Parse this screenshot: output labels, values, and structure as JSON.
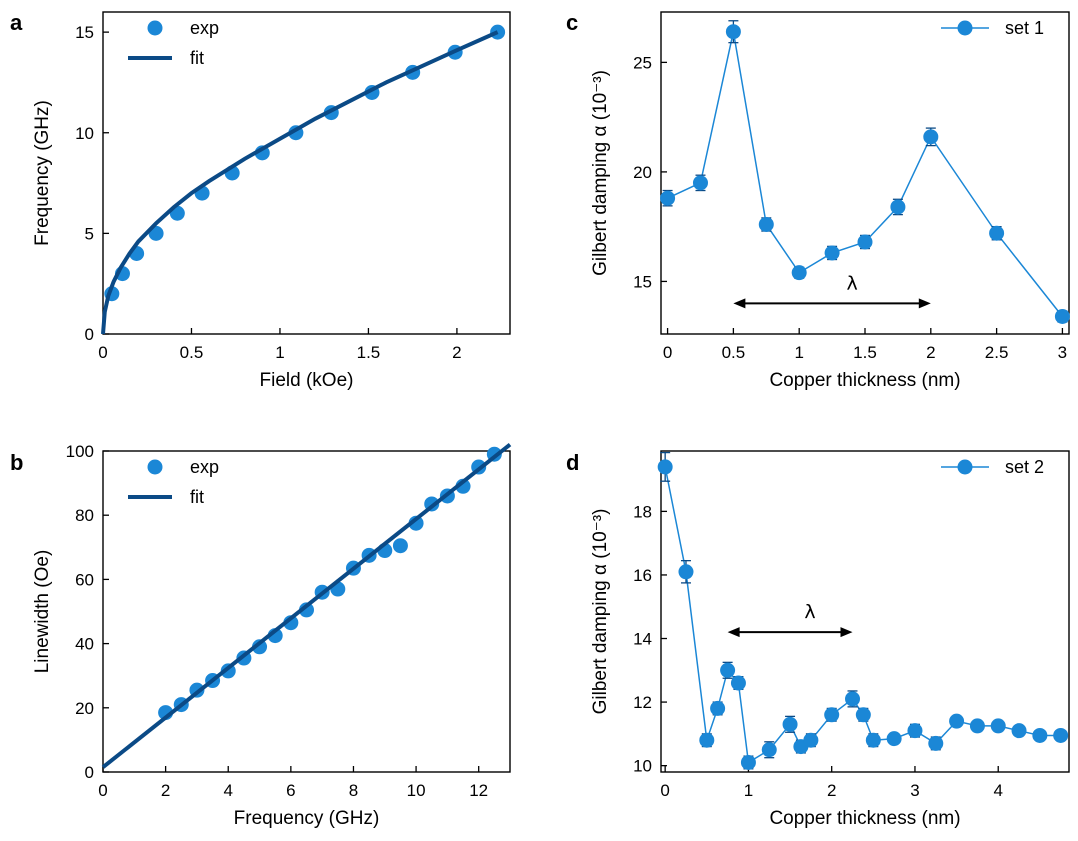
{
  "colors": {
    "marker": "#1b87d6",
    "fit": "#0b4a86",
    "axis": "#000000"
  },
  "chart_data": [
    {
      "id": "a",
      "type": "scatter",
      "panel_label": "a",
      "xlabel": "Field (kOe)",
      "ylabel": "Frequency (GHz)",
      "xlim": [
        0,
        2.3
      ],
      "ylim": [
        0,
        16
      ],
      "xticks": [
        0,
        0.5,
        1,
        1.5,
        2
      ],
      "xtick_labels": [
        "0",
        "0.5",
        "1",
        "1.5",
        "2"
      ],
      "yticks": [
        0,
        5,
        10,
        15
      ],
      "ytick_labels": [
        "0",
        "5",
        "10",
        "15"
      ],
      "legend": {
        "position": "top-left",
        "entries": [
          "exp",
          "fit"
        ]
      },
      "series": [
        {
          "name": "exp",
          "kind": "markers",
          "x": [
            0.05,
            0.11,
            0.19,
            0.3,
            0.42,
            0.56,
            0.73,
            0.9,
            1.09,
            1.29,
            1.52,
            1.75,
            1.99,
            2.23
          ],
          "y": [
            2,
            3,
            4,
            5,
            6,
            7,
            8,
            9,
            10,
            11,
            12,
            13,
            14,
            15
          ]
        },
        {
          "name": "fit",
          "kind": "line",
          "x": [
            0,
            0.01,
            0.03,
            0.06,
            0.1,
            0.15,
            0.2,
            0.3,
            0.4,
            0.5,
            0.6,
            0.8,
            1.0,
            1.2,
            1.4,
            1.6,
            1.8,
            2.0,
            2.23
          ],
          "y": [
            0,
            1.1,
            1.9,
            2.6,
            3.3,
            4.0,
            4.6,
            5.5,
            6.3,
            7.0,
            7.6,
            8.7,
            9.7,
            10.7,
            11.6,
            12.5,
            13.3,
            14.1,
            15.0
          ]
        }
      ]
    },
    {
      "id": "b",
      "type": "scatter",
      "panel_label": "b",
      "xlabel": "Frequency (GHz)",
      "ylabel": "Linewidth (Oe)",
      "xlim": [
        0,
        13
      ],
      "ylim": [
        0,
        100
      ],
      "xticks": [
        0,
        2,
        4,
        6,
        8,
        10,
        12
      ],
      "xtick_labels": [
        "0",
        "2",
        "4",
        "6",
        "8",
        "10",
        "12"
      ],
      "yticks": [
        0,
        20,
        40,
        60,
        80,
        100
      ],
      "ytick_labels": [
        "0",
        "20",
        "40",
        "60",
        "80",
        "100"
      ],
      "legend": {
        "position": "top-left",
        "entries": [
          "exp",
          "fit"
        ]
      },
      "series": [
        {
          "name": "exp",
          "kind": "markers",
          "x": [
            2,
            2.5,
            3,
            3.5,
            4,
            4.5,
            5,
            5.5,
            6,
            6.5,
            7,
            7.5,
            8,
            8.5,
            9,
            9.5,
            10,
            10.5,
            11,
            11.5,
            12,
            12.5
          ],
          "y": [
            18.5,
            21,
            25.5,
            28.5,
            31.5,
            35.5,
            39,
            42.5,
            46.5,
            50.5,
            56,
            57,
            63.5,
            67.5,
            69,
            70.5,
            77.5,
            83.5,
            86,
            89,
            95,
            99
          ]
        },
        {
          "name": "fit",
          "kind": "line",
          "x": [
            0,
            13
          ],
          "y": [
            1.5,
            102
          ]
        }
      ]
    },
    {
      "id": "c",
      "type": "line",
      "panel_label": "c",
      "xlabel": "Copper thickness (nm)",
      "ylabel": "Gilbert damping α (10⁻³)",
      "xlim": [
        -0.05,
        3.05
      ],
      "ylim": [
        12.6,
        27.3
      ],
      "xticks": [
        0,
        0.5,
        1,
        1.5,
        2,
        2.5,
        3
      ],
      "xtick_labels": [
        "0",
        "0.5",
        "1",
        "1.5",
        "2",
        "2.5",
        "3"
      ],
      "yticks": [
        15,
        20,
        25
      ],
      "ytick_labels": [
        "15",
        "20",
        "25"
      ],
      "legend": {
        "position": "top-right",
        "entries": [
          "set 1"
        ]
      },
      "annotation": {
        "text": "λ",
        "x_from": 0.5,
        "x_to": 2.0,
        "y": 14.0
      },
      "series": [
        {
          "name": "set 1",
          "kind": "line-markers",
          "x": [
            0,
            0.25,
            0.5,
            0.75,
            1.0,
            1.25,
            1.5,
            1.75,
            2.0,
            2.5,
            3.0
          ],
          "y": [
            18.8,
            19.5,
            26.4,
            17.6,
            15.4,
            16.3,
            16.8,
            18.4,
            21.6,
            17.2,
            13.4
          ],
          "err": [
            0.35,
            0.35,
            0.5,
            0.3,
            0.25,
            0.3,
            0.3,
            0.35,
            0.4,
            0.3,
            0.25
          ]
        }
      ]
    },
    {
      "id": "d",
      "type": "line",
      "panel_label": "d",
      "xlabel": "Copper thickness (nm)",
      "ylabel": "Gilbert damping α (10⁻³)",
      "xlim": [
        -0.05,
        4.85
      ],
      "ylim": [
        9.8,
        19.9
      ],
      "xticks": [
        0,
        1,
        2,
        3,
        4
      ],
      "xtick_labels": [
        "0",
        "1",
        "2",
        "3",
        "4"
      ],
      "yticks": [
        10,
        12,
        14,
        16,
        18
      ],
      "ytick_labels": [
        "10",
        "12",
        "14",
        "16",
        "18"
      ],
      "legend": {
        "position": "top-right",
        "entries": [
          "set 2"
        ]
      },
      "annotation": {
        "text": "λ",
        "x_from": 0.75,
        "x_to": 2.25,
        "y": 14.2
      },
      "series": [
        {
          "name": "set 2",
          "kind": "line-markers",
          "x": [
            0,
            0.25,
            0.5,
            0.63,
            0.75,
            0.88,
            1.0,
            1.25,
            1.5,
            1.63,
            1.75,
            2.0,
            2.25,
            2.38,
            2.5,
            2.75,
            3.0,
            3.25,
            3.5,
            3.75,
            4.0,
            4.25,
            4.5,
            4.75
          ],
          "y": [
            19.4,
            16.1,
            10.8,
            11.8,
            13.0,
            12.6,
            10.1,
            10.5,
            11.3,
            10.6,
            10.8,
            11.6,
            12.1,
            11.6,
            10.8,
            10.85,
            11.1,
            10.7,
            11.4,
            11.25,
            11.25,
            11.1,
            10.95,
            10.95
          ],
          "err": [
            0.45,
            0.35,
            0.2,
            0.2,
            0.25,
            0.2,
            0.2,
            0.25,
            0.25,
            0.2,
            0.2,
            0.2,
            0.25,
            0.2,
            0.2,
            0.15,
            0.2,
            0.2,
            0.15,
            0.15,
            0.15,
            0.15,
            0.15,
            0.15
          ]
        }
      ]
    }
  ]
}
